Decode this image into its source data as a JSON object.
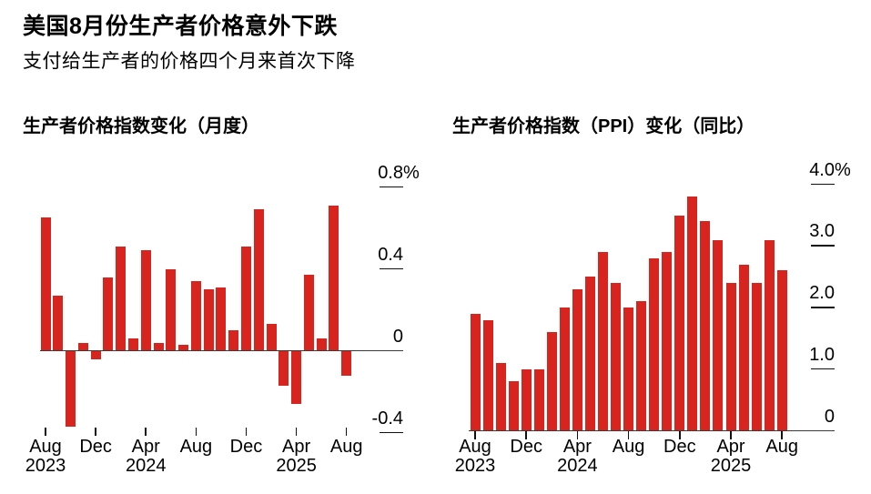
{
  "header": {
    "title": "美国8月份生产者价格意外下跌",
    "subtitle": "支付给生产者的价格四个月来首次下降"
  },
  "colors": {
    "bar": "#d7241f",
    "axis_line": "#3a3a3a",
    "tick_line": "#111111",
    "text": "#000000",
    "background": "#ffffff"
  },
  "chart_data": [
    {
      "type": "bar",
      "title": "生产者价格指数变化（月度）",
      "unit": "%",
      "ylim": [
        -0.4,
        0.8
      ],
      "grid": false,
      "legend": null,
      "axis_label_side": "right",
      "categories": [
        "Aug 2023",
        "Sep 2023",
        "Oct 2023",
        "Nov 2023",
        "Dec 2023",
        "Jan 2024",
        "Feb 2024",
        "Mar 2024",
        "Apr 2024",
        "May 2024",
        "Jun 2024",
        "Jul 2024",
        "Aug 2024",
        "Sep 2024",
        "Oct 2024",
        "Nov 2024",
        "Dec 2024",
        "Jan 2025",
        "Feb 2025",
        "Mar 2025",
        "Apr 2025",
        "May 2025",
        "Jun 2025",
        "Jul 2025",
        "Aug 2025"
      ],
      "values": [
        0.65,
        0.27,
        -0.37,
        0.04,
        -0.04,
        0.36,
        0.51,
        0.06,
        0.49,
        0.04,
        0.4,
        0.03,
        0.34,
        0.3,
        0.31,
        0.1,
        0.51,
        0.69,
        0.13,
        -0.17,
        -0.26,
        0.37,
        0.06,
        0.71,
        -0.12
      ],
      "y_ticks": [
        {
          "value": 0.8,
          "label": "0.8",
          "suffix": "%"
        },
        {
          "value": 0.4,
          "label": "0.4"
        },
        {
          "value": 0,
          "label": "0"
        },
        {
          "value": -0.4,
          "label": "-0.4"
        }
      ],
      "x_ticks": [
        {
          "index": 0,
          "month": "Aug",
          "year": "2023"
        },
        {
          "index": 4,
          "month": "Dec"
        },
        {
          "index": 8,
          "month": "Apr",
          "year": "2024"
        },
        {
          "index": 12,
          "month": "Aug"
        },
        {
          "index": 16,
          "month": "Dec"
        },
        {
          "index": 20,
          "month": "Apr",
          "year": "2025"
        },
        {
          "index": 24,
          "month": "Aug"
        }
      ]
    },
    {
      "type": "bar",
      "title": "生产者价格指数（PPI）变化（同比）",
      "unit": "%",
      "ylim": [
        0,
        4.0
      ],
      "grid": false,
      "legend": null,
      "axis_label_side": "right",
      "categories": [
        "Aug 2023",
        "Sep 2023",
        "Oct 2023",
        "Nov 2023",
        "Dec 2023",
        "Jan 2024",
        "Feb 2024",
        "Mar 2024",
        "Apr 2024",
        "May 2024",
        "Jun 2024",
        "Jul 2024",
        "Aug 2024",
        "Sep 2024",
        "Oct 2024",
        "Nov 2024",
        "Dec 2024",
        "Jan 2025",
        "Feb 2025",
        "Mar 2025",
        "Apr 2025",
        "May 2025",
        "Jun 2025",
        "Jul 2025",
        "Aug 2025"
      ],
      "values": [
        1.9,
        1.8,
        1.1,
        0.8,
        1.0,
        1.0,
        1.6,
        2.0,
        2.3,
        2.5,
        2.9,
        2.4,
        2.0,
        2.1,
        2.8,
        2.9,
        3.5,
        3.8,
        3.4,
        3.1,
        2.4,
        2.7,
        2.4,
        3.1,
        2.6
      ],
      "y_ticks": [
        {
          "value": 4.0,
          "label": "4.0",
          "suffix": "%"
        },
        {
          "value": 3.0,
          "label": "3.0"
        },
        {
          "value": 2.0,
          "label": "2.0"
        },
        {
          "value": 1.0,
          "label": "1.0"
        },
        {
          "value": 0,
          "label": "0"
        }
      ],
      "x_ticks": [
        {
          "index": 0,
          "month": "Aug",
          "year": "2023"
        },
        {
          "index": 4,
          "month": "Dec"
        },
        {
          "index": 8,
          "month": "Apr",
          "year": "2024"
        },
        {
          "index": 12,
          "month": "Aug"
        },
        {
          "index": 16,
          "month": "Dec"
        },
        {
          "index": 20,
          "month": "Apr",
          "year": "2025"
        },
        {
          "index": 24,
          "month": "Aug"
        }
      ]
    }
  ]
}
